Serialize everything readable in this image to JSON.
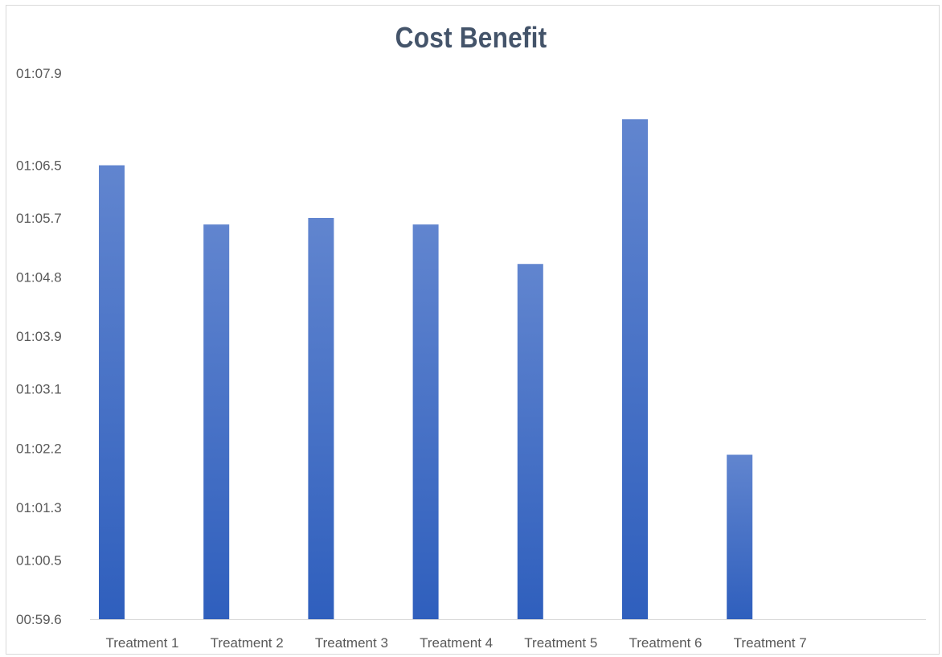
{
  "chart_data": {
    "type": "bar",
    "title": "Cost Benefit",
    "xlabel": "",
    "ylabel": "",
    "categories": [
      "Treatment 1",
      "Treatment 2",
      "Treatment 3",
      "Treatment 4",
      "Treatment 5",
      "Treatment 6",
      "Treatment 7"
    ],
    "values": [
      "01:06.5",
      "01:05.6",
      "01:05.7",
      "01:05.6",
      "01:05.0",
      "01:07.2",
      "01:02.1"
    ],
    "y_tick_labels": [
      "00:59.6",
      "01:00.5",
      "01:01.3",
      "01:02.2",
      "01:03.1",
      "01:03.9",
      "01:04.8",
      "01:05.7",
      "01:06.5",
      "01:07.9"
    ],
    "ylim": [
      "00:59.6",
      "01:07.9"
    ],
    "grid": false,
    "legend": "none",
    "colors": {
      "bar_top": "#6185cf",
      "bar_bottom": "#2f5fbd",
      "title": "#44546a",
      "axis": "#d9d9d9",
      "tick_text": "#595959"
    }
  }
}
